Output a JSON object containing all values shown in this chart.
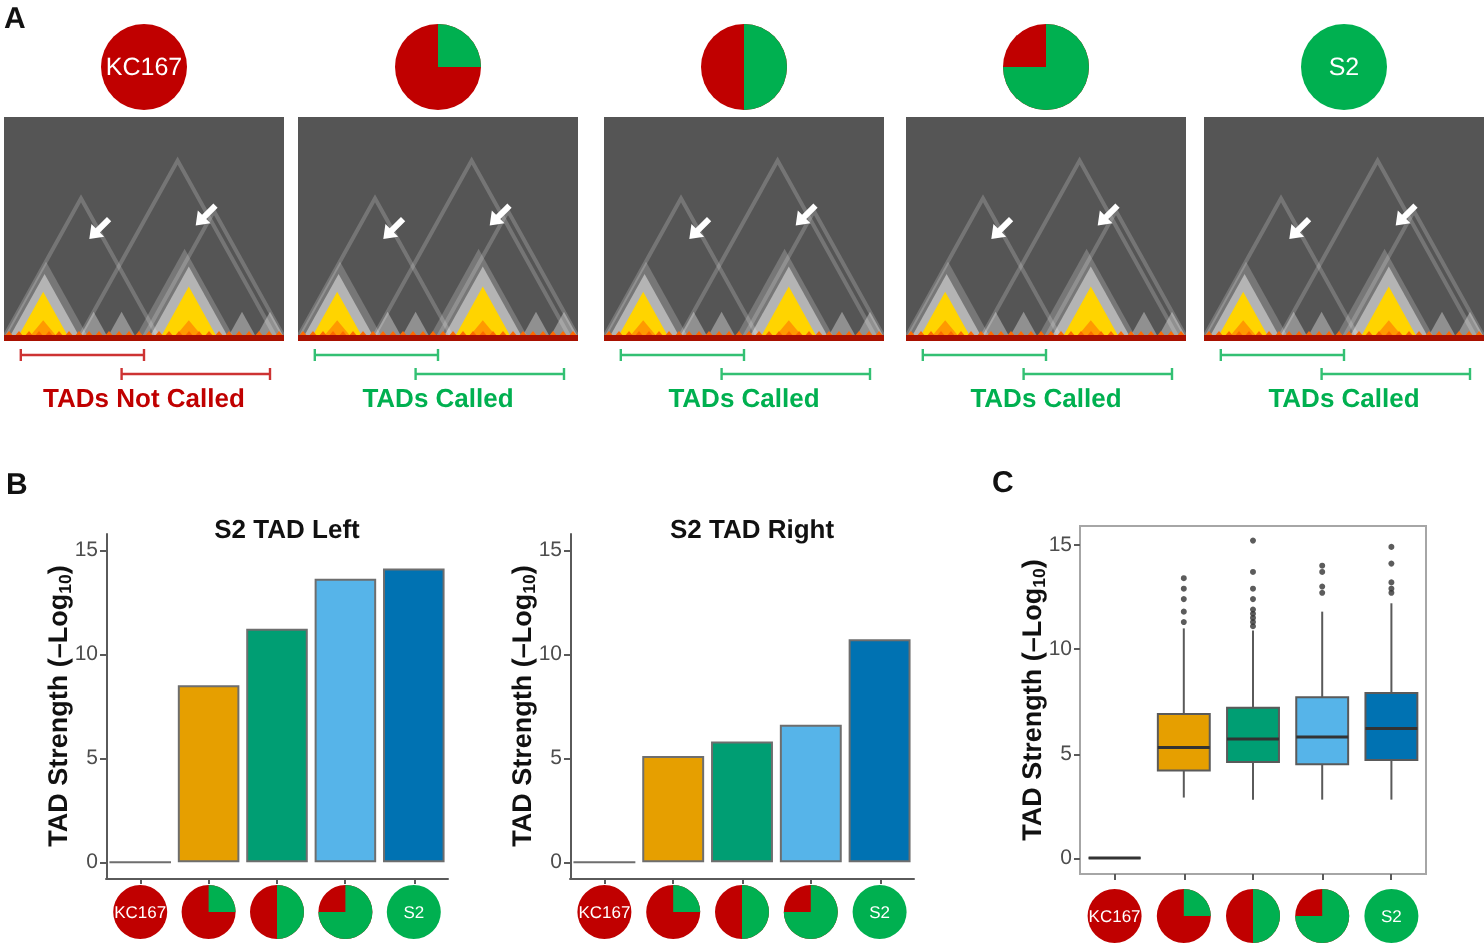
{
  "chart_data": [
    {
      "type": "other",
      "categories": [
        "KC167",
        null,
        null,
        null,
        "S2"
      ],
      "annotations": [
        "A",
        "TADs Not Called",
        "TADs Called",
        "TADs Called",
        "TADs Called",
        "TADs Called"
      ],
      "colors": [
        "#c00000",
        "#00b050",
        "#00b050",
        "#00b050",
        "#00b050"
      ]
    },
    {
      "type": "bar",
      "title": "S2 TAD Left",
      "ylabel": "TAD Strength (–Log$_{10}$)",
      "categories": [
        "KC167",
        null,
        null,
        null,
        "S2"
      ],
      "values": [
        0,
        8.5,
        11.2,
        13.6,
        14.1
      ],
      "colors": [
        "#6e6e6e",
        "#e69f00",
        "#009e73",
        "#56b4e9",
        "#0072b2"
      ],
      "ylim": [
        -0.75,
        15.75
      ],
      "yticks": [
        0,
        5,
        10,
        15
      ],
      "annotations": [
        "B"
      ]
    },
    {
      "type": "bar",
      "title": "S2 TAD Right",
      "ylabel": "TAD Strength (–Log$_{10}$)",
      "categories": [
        "KC167",
        null,
        null,
        null,
        "S2"
      ],
      "values": [
        0,
        5.1,
        5.8,
        6.6,
        10.7
      ],
      "colors": [
        "#6e6e6e",
        "#e69f00",
        "#009e73",
        "#56b4e9",
        "#0072b2"
      ],
      "ylim": [
        -0.75,
        15.75
      ],
      "yticks": [
        0,
        5,
        10,
        15
      ]
    },
    {
      "type": "box",
      "ylabel": "TAD Strength (–Log$_{10}$)",
      "categories": [
        "KC167",
        null,
        null,
        null,
        "S2"
      ],
      "boxes": [
        {
          "low": 0,
          "q1": 0,
          "median": 0,
          "q3": 0,
          "high": 0
        },
        {
          "low": 2.9,
          "q1": 4.2,
          "median": 5.3,
          "q3": 6.9,
          "high": 11.0,
          "outliers": [
            11.3,
            11.8,
            12.4,
            12.9,
            13.4
          ]
        },
        {
          "low": 2.8,
          "q1": 4.6,
          "median": 5.7,
          "q3": 7.2,
          "high": 10.9,
          "outliers": [
            11.1,
            11.3,
            11.5,
            11.7,
            11.9,
            12.4,
            12.9,
            13.7,
            15.2
          ]
        },
        {
          "low": 2.8,
          "q1": 4.5,
          "median": 5.8,
          "q3": 7.7,
          "high": 11.8,
          "outliers": [
            12.7,
            13.0,
            13.7,
            14.0
          ]
        },
        {
          "low": 2.8,
          "q1": 4.7,
          "median": 6.2,
          "q3": 7.9,
          "high": 12.2,
          "outliers": [
            12.7,
            12.9,
            13.2,
            14.1,
            14.9
          ]
        }
      ],
      "colors": [
        "#5a5a5a",
        "#e69f00",
        "#009e73",
        "#56b4e9",
        "#0072b2"
      ],
      "ylim": [
        -0.76,
        15.9
      ],
      "yticks": [
        0,
        5,
        10,
        15
      ],
      "annotations": [
        "C"
      ]
    }
  ]
}
